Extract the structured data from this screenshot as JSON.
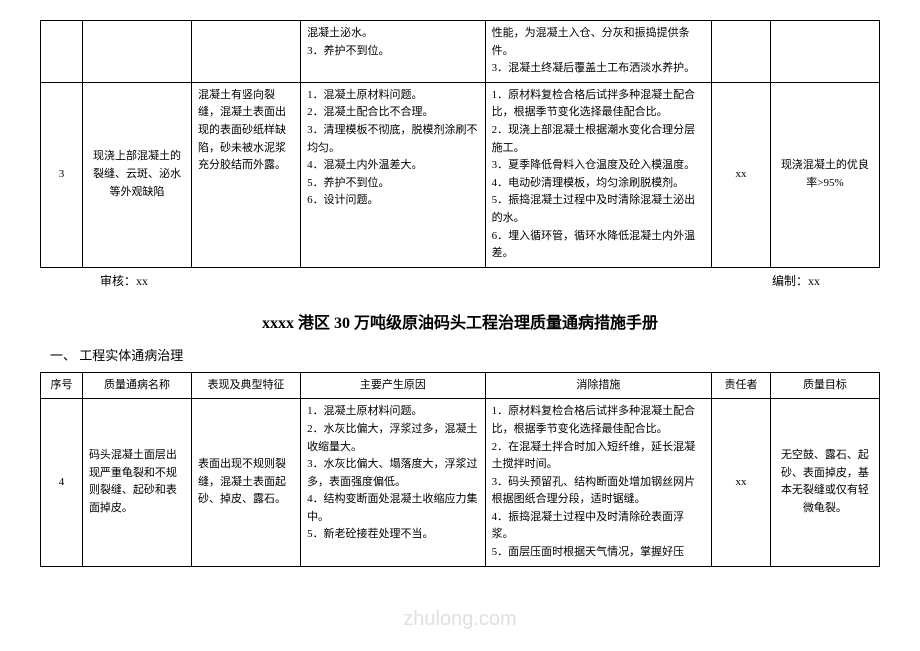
{
  "table1": {
    "row2": {
      "causes_cont": "混凝土泌水。\n3．养护不到位。",
      "measures_cont": "性能，为混凝土入仓、分灰和振捣提供条件。\n3．混凝土终凝后覆盖土工布洒淡水养护。"
    },
    "row3": {
      "num": "3",
      "name": "现浇上部混凝土的裂缝、云斑、泌水等外观缺陷",
      "feature": "混凝土有竖向裂缝，混凝土表面出现的表面砂纸样缺陷，砂未被水泥浆充分胶结而外露。",
      "causes": "1．混凝土原材料问题。\n2．混凝土配合比不合理。\n3．清理模板不彻底，脱模剂涂刷不均匀。\n4．混凝土内外温差大。\n5．养护不到位。\n6．设计问题。",
      "measures": "1．原材料复检合格后试拌多种混凝土配合比，根据季节变化选择最佳配合比。\n2．现浇上部混凝土根据潮水变化合理分层施工。\n3．夏季降低骨料入仓温度及砼入模温度。\n4．电动砂清理模板，均匀涂刷脱模剂。\n5．振捣混凝土过程中及时清除混凝土泌出的水。\n6．埋入循环管，循环水降低混凝土内外温差。",
      "resp": "xx",
      "goal": "现浇混凝土的优良率>95%"
    }
  },
  "footer": {
    "audit": "审核：xx",
    "compile": "编制：xx"
  },
  "title": "xxxx 港区 30 万吨级原油码头工程治理质量通病措施手册",
  "section": "一、 工程实体通病治理",
  "table2": {
    "headers": {
      "num": "序号",
      "name": "质量通病名称",
      "feature": "表现及典型特征",
      "cause": "主要产生原因",
      "measure": "消除措施",
      "resp": "责任者",
      "goal": "质量目标"
    },
    "row4": {
      "num": "4",
      "name": "码头混凝土面层出现严重龟裂和不规则裂缝、起砂和表面掉皮。",
      "feature": "表面出现不规则裂缝，混凝土表面起砂、掉皮、露石。",
      "causes": "1．混凝土原材料问题。\n2．水灰比偏大，浮浆过多，混凝土收缩量大。\n3．水灰比偏大、塌落度大，浮浆过多，表面强度偏低。\n4．结构变断面处混凝土收缩应力集中。\n5．新老砼接茬处理不当。",
      "measures": "1．原材料复检合格后试拌多种混凝土配合比，根据季节变化选择最佳配合比。\n2．在混凝土拌合时加入短纤维，延长混凝土搅拌时间。\n3．码头预留孔、结构断面处增加钢丝网片根据图纸合理分段，适时锯缝。\n4．振捣混凝土过程中及时清除砼表面浮浆。\n5．面层压面时根据天气情况，掌握好压",
      "resp": "xx",
      "goal": "无空鼓、露石、起砂、表面掉皮，基本无裂缝或仅有轻微龟裂。"
    }
  }
}
